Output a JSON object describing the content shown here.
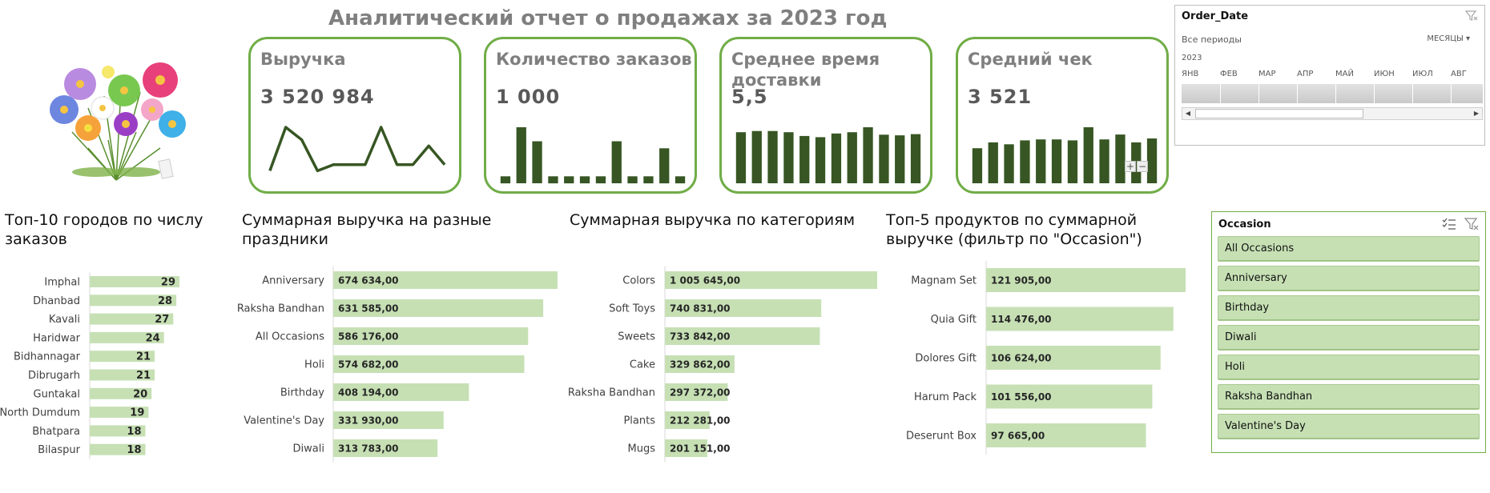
{
  "report": {
    "title": "Аналитический отчет о продажах за 2023 год"
  },
  "kpis": [
    {
      "label": "Выручка",
      "value": "3 520 984",
      "spark_type": "line",
      "spark": [
        2,
        9,
        7,
        2,
        3,
        3,
        3,
        9,
        3,
        3,
        6,
        3
      ]
    },
    {
      "label": "Количество заказов",
      "value": "1 000",
      "spark_type": "bar",
      "spark": [
        1,
        8,
        6,
        1,
        1,
        1,
        1,
        6,
        1,
        1,
        5,
        1
      ]
    },
    {
      "label": "Среднее время доставки",
      "value": "5,5",
      "spark_type": "bar",
      "spark": [
        8.2,
        8.4,
        8.4,
        8.2,
        7.6,
        7.4,
        8,
        8.2,
        9,
        7.8,
        7.7,
        7.9
      ]
    },
    {
      "label": "Средний чек",
      "value": "3 521",
      "spark_type": "bar",
      "spark": [
        7.2,
        8.4,
        8,
        8.8,
        9,
        9,
        8.8,
        11.5,
        9,
        10,
        8.4,
        9.2
      ]
    }
  ],
  "colors": {
    "accent": "#70ad47",
    "bar_fill": "#c6e0b4",
    "spark_dark": "#375623",
    "title_grey": "#7f7f7f"
  },
  "zoom_controls": {
    "plus": "+",
    "minus": "−"
  },
  "charts": {
    "cities": {
      "title": "Топ-10 городов по числу заказов"
    },
    "occasion": {
      "title": "Суммарная выручка на разные праздники"
    },
    "category": {
      "title": "Суммарная выручка по категориям"
    },
    "products": {
      "title": "Топ-5 продуктов по суммарной выручке (фильтр по \"Occasion\")"
    }
  },
  "chart_data": [
    {
      "type": "bar",
      "orientation": "horizontal",
      "title": "Топ-10 городов по числу заказов",
      "categories": [
        "Imphal",
        "Dhanbad",
        "Kavali",
        "Haridwar",
        "Bidhannagar",
        "Dibrugarh",
        "Guntakal",
        "North Dumdum",
        "Bhatpara",
        "Bilaspur"
      ],
      "values": [
        29,
        28,
        27,
        24,
        21,
        21,
        20,
        19,
        18,
        18
      ],
      "labels": [
        "29",
        "28",
        "27",
        "24",
        "21",
        "21",
        "20",
        "19",
        "18",
        "18"
      ]
    },
    {
      "type": "bar",
      "orientation": "horizontal",
      "title": "Суммарная выручка на разные праздники",
      "categories": [
        "Anniversary",
        "Raksha Bandhan",
        "All Occasions",
        "Holi",
        "Birthday",
        "Valentine's Day",
        "Diwali"
      ],
      "values": [
        674634,
        631585,
        586176,
        574682,
        408194,
        331930,
        313783
      ],
      "labels": [
        "674 634,00",
        "631 585,00",
        "586 176,00",
        "574 682,00",
        "408 194,00",
        "331 930,00",
        "313 783,00"
      ]
    },
    {
      "type": "bar",
      "orientation": "horizontal",
      "title": "Суммарная выручка по категориям",
      "categories": [
        "Colors",
        "Soft Toys",
        "Sweets",
        "Cake",
        "Raksha Bandhan",
        "Plants",
        "Mugs"
      ],
      "values": [
        1005645,
        740831,
        733842,
        329862,
        297372,
        212281,
        201151
      ],
      "labels": [
        "1 005 645,00",
        "740 831,00",
        "733 842,00",
        "329 862,00",
        "297 372,00",
        "212 281,00",
        "201 151,00"
      ]
    },
    {
      "type": "bar",
      "orientation": "horizontal",
      "title": "Топ-5 продуктов по суммарной выручке (фильтр по \"Occasion\")",
      "categories": [
        "Magnam Set",
        "Quia Gift",
        "Dolores Gift",
        "Harum Pack",
        "Deserunt Box"
      ],
      "values": [
        121905,
        114476,
        106624,
        101556,
        97665
      ],
      "labels": [
        "121 905,00",
        "114 476,00",
        "106 624,00",
        "101 556,00",
        "97 665,00"
      ]
    }
  ],
  "timeline": {
    "field": "Order_Date",
    "all_periods": "Все периоды",
    "granularity": "МЕСЯЦЫ",
    "year": "2023",
    "months": [
      "ЯНВ",
      "ФЕВ",
      "МАР",
      "АПР",
      "МАЙ",
      "ИЮН",
      "ИЮЛ",
      "АВГ"
    ]
  },
  "occasion_slicer": {
    "title": "Occasion",
    "items": [
      "All Occasions",
      "Anniversary",
      "Birthday",
      "Diwali",
      "Holi",
      "Raksha Bandhan",
      "Valentine's Day"
    ]
  }
}
